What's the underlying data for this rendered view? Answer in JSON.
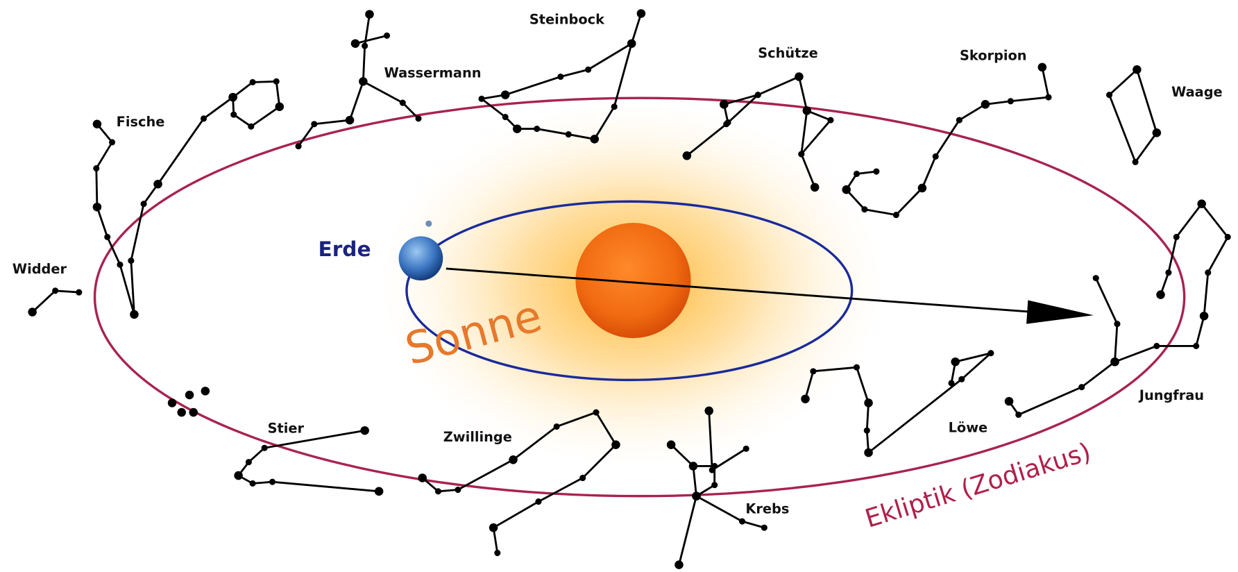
{
  "constellations": [
    "Steinbock",
    "Wassermann",
    "Fische",
    "Widder",
    "Schütze",
    "Skorpion",
    "Waage",
    "Jungfrau",
    "Löwe",
    "Krebs",
    "Zwillinge",
    "Stier"
  ],
  "earth": "Erde",
  "sun": "Sonne",
  "ecliptic": "Ekliptik (Zodiakus)"
}
